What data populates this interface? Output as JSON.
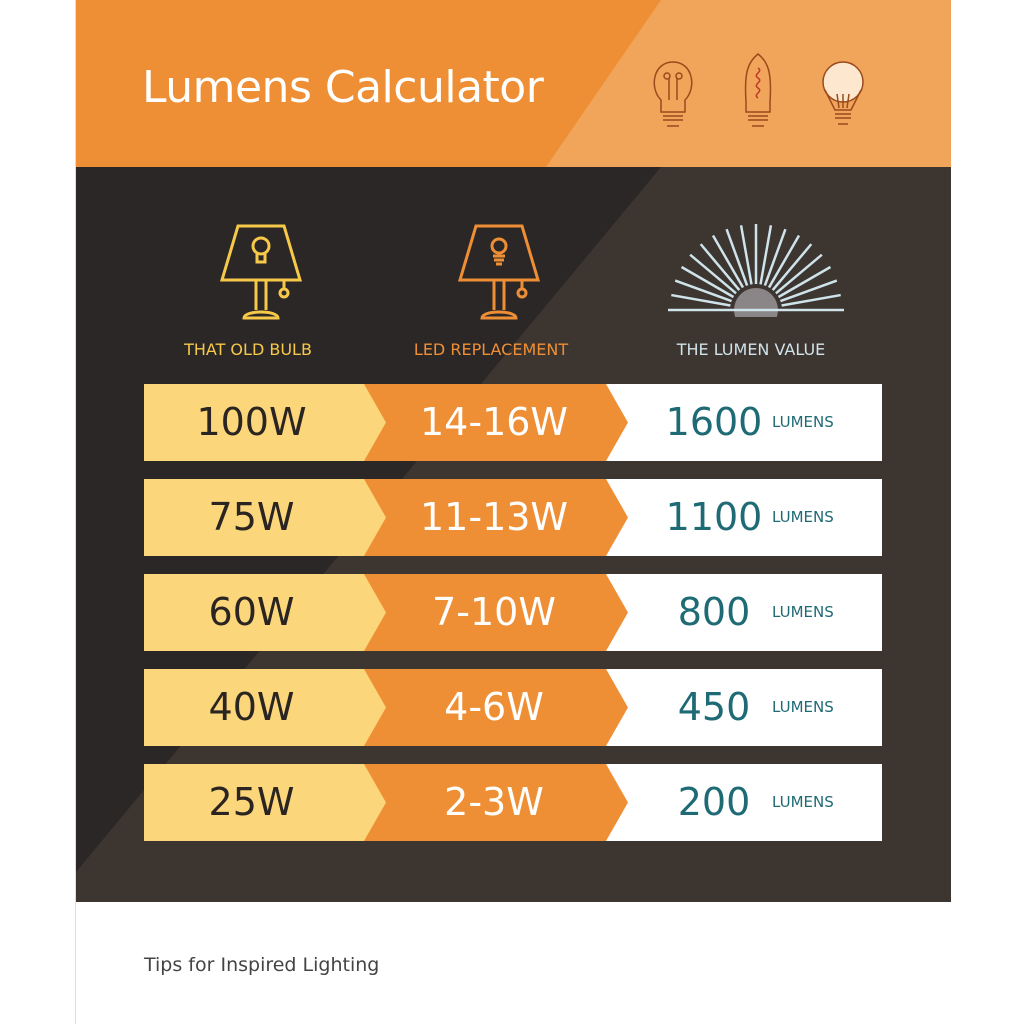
{
  "header": {
    "title": "Lumens Calculator",
    "icons": [
      "incandescent-bulb-icon",
      "edison-bulb-icon",
      "led-bulb-icon"
    ]
  },
  "columns": [
    {
      "label": "THAT OLD BULB",
      "icon": "lamp-incandescent-icon",
      "color": "#f7c948"
    },
    {
      "label": "LED REPLACEMENT",
      "icon": "lamp-led-icon",
      "color": "#ef8f35"
    },
    {
      "label": "THE LUMEN VALUE",
      "icon": "sunburst-icon",
      "color": "#cfe3ea"
    }
  ],
  "rows": [
    {
      "old": "100W",
      "led": "14-16W",
      "lumens": "1600",
      "unit": "LUMENS"
    },
    {
      "old": "75W",
      "led": "11-13W",
      "lumens": "1100",
      "unit": "LUMENS"
    },
    {
      "old": "60W",
      "led": "7-10W",
      "lumens": "800",
      "unit": "LUMENS"
    },
    {
      "old": "40W",
      "led": "4-6W",
      "lumens": "450",
      "unit": "LUMENS"
    },
    {
      "old": "25W",
      "led": "2-3W",
      "lumens": "200",
      "unit": "LUMENS"
    }
  ],
  "footer": {
    "text": "Tips for Inspired Lighting"
  },
  "colors": {
    "orange": "#ef8f35",
    "yellow": "#fcd67a",
    "dark": "#2b2727",
    "teal": "#1e6a75"
  }
}
